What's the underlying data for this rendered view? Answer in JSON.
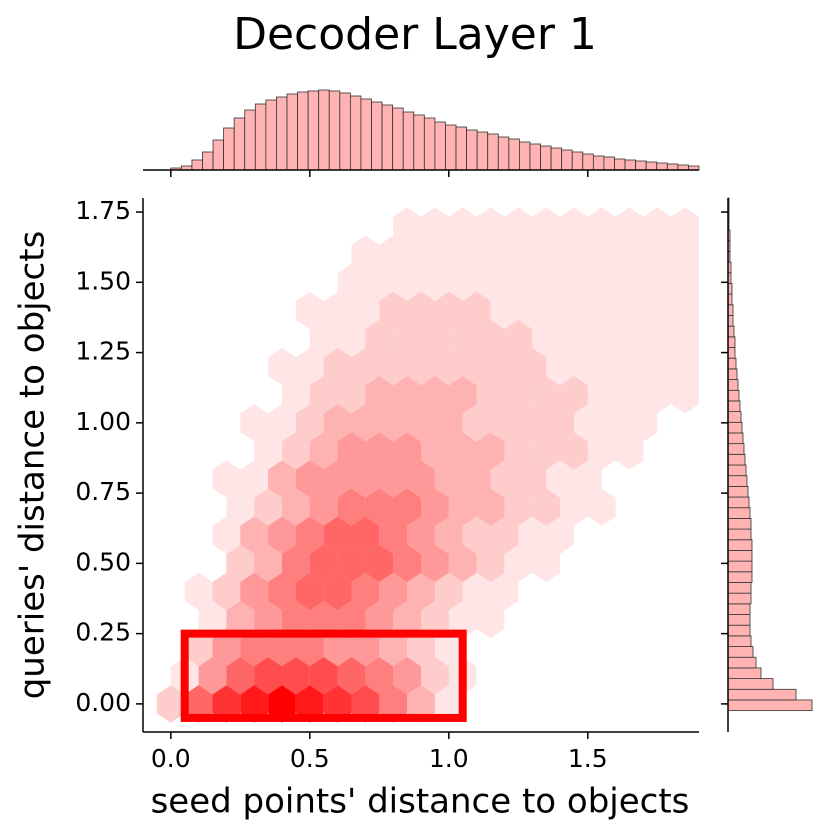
{
  "chart_data": {
    "type": "jointhex",
    "title": "Decoder Layer 1",
    "xlabel": "seed points' distance to objects",
    "ylabel": "queries' distance to objects",
    "xlim": [
      -0.1,
      1.9
    ],
    "ylim": [
      -0.1,
      1.8
    ],
    "xticks": [
      {
        "value": 0,
        "label": "0.0"
      },
      {
        "value": 0.5,
        "label": "0.5"
      },
      {
        "value": 1,
        "label": "1.0"
      },
      {
        "value": 1.5,
        "label": "1.5"
      }
    ],
    "yticks": [
      {
        "value": 0,
        "label": "0.00"
      },
      {
        "value": 0.25,
        "label": "0.25"
      },
      {
        "value": 0.5,
        "label": "0.50"
      },
      {
        "value": 0.75,
        "label": "0.75"
      },
      {
        "value": 1,
        "label": "1.00"
      },
      {
        "value": 1.25,
        "label": "1.25"
      },
      {
        "value": 1.5,
        "label": "1.50"
      },
      {
        "value": 1.75,
        "label": "1.75"
      }
    ],
    "hexbin": {
      "color": "#ff0000",
      "x": [
        0,
        0.1,
        0.2,
        0.3,
        0.4,
        0.5,
        0.6,
        0.7,
        0.8,
        0.9,
        1.0,
        1.1,
        1.2,
        1.3,
        1.4,
        1.5,
        1.6,
        1.7,
        1.8,
        1.9
      ],
      "y": [
        0,
        0.1,
        0.2,
        0.3,
        0.4,
        0.5,
        0.6,
        0.7,
        0.8,
        0.9,
        1.0,
        1.1,
        1.2,
        1.3,
        1.4,
        1.5,
        1.6,
        1.7
      ],
      "counts": [
        [
          2,
          6,
          8,
          9,
          10,
          9,
          8,
          7,
          5,
          3,
          1,
          0,
          0,
          0,
          0,
          0,
          0,
          0,
          0,
          0
        ],
        [
          1,
          4,
          6,
          7,
          7,
          7,
          6,
          5,
          4,
          2,
          1,
          0,
          0,
          0,
          0,
          0,
          0,
          0,
          0,
          0
        ],
        [
          0,
          2,
          4,
          5,
          5,
          5,
          4,
          4,
          3,
          2,
          1,
          0,
          0,
          0,
          0,
          0,
          0,
          0,
          0,
          0
        ],
        [
          0,
          1,
          3,
          4,
          5,
          5,
          5,
          4,
          3,
          2,
          1,
          1,
          0,
          0,
          0,
          0,
          0,
          0,
          0,
          0
        ],
        [
          0,
          1,
          2,
          4,
          5,
          6,
          6,
          5,
          4,
          3,
          2,
          1,
          1,
          0,
          0,
          0,
          0,
          0,
          0,
          0
        ],
        [
          0,
          0,
          2,
          3,
          5,
          6,
          6,
          6,
          5,
          4,
          3,
          2,
          1,
          1,
          0,
          0,
          0,
          0,
          0,
          0
        ],
        [
          0,
          0,
          1,
          3,
          4,
          5,
          6,
          6,
          5,
          4,
          3,
          2,
          2,
          1,
          1,
          0,
          0,
          0,
          0,
          0
        ],
        [
          0,
          0,
          1,
          2,
          3,
          4,
          5,
          5,
          5,
          4,
          3,
          3,
          2,
          2,
          1,
          1,
          0,
          0,
          0,
          0
        ],
        [
          0,
          0,
          1,
          1,
          3,
          4,
          4,
          4,
          4,
          4,
          3,
          3,
          2,
          2,
          1,
          1,
          0,
          0,
          0,
          0
        ],
        [
          0,
          0,
          0,
          1,
          2,
          3,
          4,
          4,
          4,
          3,
          3,
          3,
          2,
          2,
          2,
          1,
          1,
          0,
          0,
          0
        ],
        [
          0,
          0,
          0,
          1,
          1,
          2,
          3,
          3,
          3,
          3,
          3,
          2,
          2,
          2,
          2,
          1,
          1,
          1,
          0,
          0
        ],
        [
          0,
          0,
          0,
          0,
          1,
          2,
          2,
          3,
          3,
          3,
          3,
          2,
          2,
          2,
          2,
          1,
          1,
          1,
          1,
          0
        ],
        [
          0,
          0,
          0,
          0,
          1,
          1,
          2,
          2,
          2,
          2,
          2,
          2,
          2,
          2,
          1,
          1,
          1,
          1,
          1,
          1
        ],
        [
          0,
          0,
          0,
          0,
          0,
          1,
          1,
          2,
          2,
          2,
          2,
          2,
          2,
          1,
          1,
          1,
          1,
          1,
          1,
          1
        ],
        [
          0,
          0,
          0,
          0,
          0,
          1,
          1,
          1,
          2,
          2,
          2,
          2,
          1,
          1,
          1,
          1,
          1,
          1,
          1,
          1
        ],
        [
          0,
          0,
          0,
          0,
          0,
          0,
          1,
          1,
          1,
          1,
          1,
          1,
          1,
          1,
          1,
          1,
          1,
          1,
          1,
          1
        ],
        [
          0,
          0,
          0,
          0,
          0,
          0,
          0,
          1,
          1,
          1,
          1,
          1,
          1,
          1,
          1,
          1,
          1,
          1,
          1,
          1
        ],
        [
          0,
          0,
          0,
          0,
          0,
          0,
          0,
          0,
          1,
          1,
          1,
          1,
          1,
          1,
          1,
          1,
          1,
          1,
          1,
          1
        ]
      ]
    },
    "top_hist": {
      "color": "#ffb3b3",
      "bins": [
        0,
        0.038,
        0.076,
        0.114,
        0.152,
        0.19,
        0.228,
        0.266,
        0.304,
        0.342,
        0.38,
        0.418,
        0.456,
        0.494,
        0.532,
        0.57,
        0.608,
        0.646,
        0.684,
        0.722,
        0.76,
        0.798,
        0.836,
        0.874,
        0.912,
        0.95,
        0.988,
        1.026,
        1.064,
        1.102,
        1.14,
        1.178,
        1.216,
        1.254,
        1.292,
        1.33,
        1.368,
        1.406,
        1.444,
        1.482,
        1.52,
        1.558,
        1.596,
        1.634,
        1.672,
        1.71,
        1.748,
        1.786,
        1.824,
        1.862,
        1.9
      ],
      "counts": [
        2,
        4,
        10,
        18,
        30,
        42,
        52,
        60,
        66,
        70,
        73,
        76,
        78,
        79,
        80,
        79,
        77,
        74,
        71,
        68,
        65,
        62,
        58,
        55,
        52,
        48,
        45,
        43,
        40,
        38,
        36,
        33,
        31,
        28,
        26,
        24,
        22,
        20,
        18,
        16,
        14,
        13,
        11,
        10,
        9,
        8,
        7,
        6,
        5,
        4
      ]
    },
    "right_hist": {
      "color": "#ffb3b3",
      "bins": [
        -0.1,
        -0.062,
        -0.024,
        0.014,
        0.052,
        0.09,
        0.128,
        0.166,
        0.204,
        0.242,
        0.28,
        0.318,
        0.356,
        0.394,
        0.432,
        0.47,
        0.508,
        0.546,
        0.584,
        0.622,
        0.66,
        0.698,
        0.736,
        0.774,
        0.812,
        0.85,
        0.888,
        0.926,
        0.964,
        1.002,
        1.04,
        1.078,
        1.116,
        1.154,
        1.192,
        1.23,
        1.268,
        1.306,
        1.344,
        1.382,
        1.42,
        1.458,
        1.496,
        1.534,
        1.572,
        1.61,
        1.648,
        1.686,
        1.724,
        1.762,
        1.8
      ],
      "counts": [
        0,
        0,
        84,
        68,
        45,
        33,
        28,
        25,
        23,
        22,
        22,
        22,
        23,
        23,
        24,
        24,
        24,
        24,
        23,
        23,
        22,
        21,
        20,
        19,
        18,
        17,
        16,
        15,
        14,
        13,
        12,
        11,
        10,
        9,
        8,
        7,
        7,
        6,
        5,
        5,
        4,
        4,
        3,
        3,
        2,
        2,
        2,
        1,
        1,
        1
      ]
    },
    "highlight": {
      "xlim": [
        0.05,
        1.05
      ],
      "ylim": [
        -0.05,
        0.25
      ],
      "color": "#ff0000"
    }
  }
}
